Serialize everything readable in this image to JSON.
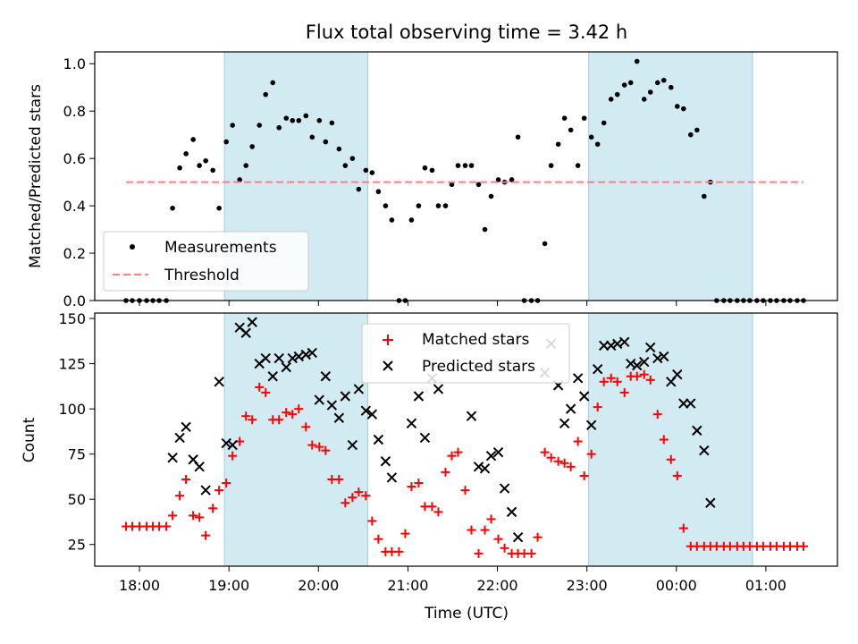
{
  "chart_data": [
    {
      "type": "scatter",
      "title": "Flux total observing time = 3.42 h",
      "xlabel": "",
      "ylabel": "Matched/Predicted stars",
      "xlim": [
        -0.5,
        7.8
      ],
      "ylim": [
        0.0,
        1.05
      ],
      "x_ticks": [
        0,
        1,
        2,
        3,
        4,
        5,
        6,
        7
      ],
      "y_ticks": [
        {
          "v": 0.0,
          "label": "0.0"
        },
        {
          "v": 0.2,
          "label": "0.2"
        },
        {
          "v": 0.4,
          "label": "0.4"
        },
        {
          "v": 0.6,
          "label": "0.6"
        },
        {
          "v": 0.8,
          "label": "0.8"
        },
        {
          "v": 1.0,
          "label": "1.0"
        }
      ],
      "shaded_spans": [
        [
          0.95,
          2.55
        ],
        [
          5.02,
          6.85
        ]
      ],
      "legend_position": "lower-left",
      "series": [
        {
          "name": "Measurements",
          "style": "dot",
          "color": "#000000",
          "x": [
            -0.15,
            -0.08,
            0.0,
            0.08,
            0.15,
            0.22,
            0.3,
            0.37,
            0.45,
            0.52,
            0.6,
            0.67,
            0.74,
            0.82,
            0.89,
            0.97,
            1.04,
            1.12,
            1.19,
            1.26,
            1.34,
            1.41,
            1.49,
            1.56,
            1.64,
            1.71,
            1.78,
            1.86,
            1.93,
            2.01,
            2.08,
            2.15,
            2.23,
            2.3,
            2.38,
            2.45,
            2.53,
            2.6,
            2.67,
            2.75,
            2.82,
            2.9,
            2.97,
            3.04,
            3.12,
            3.19,
            3.27,
            3.34,
            3.42,
            3.49,
            3.56,
            3.64,
            3.71,
            3.79,
            3.86,
            3.93,
            4.01,
            4.08,
            4.16,
            4.23,
            4.3,
            4.38,
            4.45,
            4.53,
            4.6,
            4.68,
            4.75,
            4.82,
            4.9,
            4.97,
            5.05,
            5.12,
            5.19,
            5.27,
            5.34,
            5.42,
            5.49,
            5.56,
            5.64,
            5.71,
            5.79,
            5.86,
            5.94,
            6.01,
            6.08,
            6.16,
            6.23,
            6.31,
            6.38,
            6.45,
            6.53,
            6.6,
            6.68,
            6.75,
            6.82,
            6.9,
            6.97,
            7.05,
            7.12,
            7.2,
            7.27,
            7.35,
            7.42
          ],
          "y": [
            0,
            0,
            0,
            0,
            0,
            0,
            0,
            0.39,
            0.56,
            0.62,
            0.68,
            0.57,
            0.59,
            0.55,
            0.39,
            0.67,
            0.74,
            0.51,
            0.57,
            0.65,
            0.74,
            0.87,
            0.92,
            0.73,
            0.77,
            0.76,
            0.76,
            0.78,
            0.69,
            0.76,
            0.67,
            0.75,
            0.64,
            0.57,
            0.6,
            0.47,
            0.55,
            0.54,
            0.46,
            0.4,
            0.34,
            0,
            0,
            0.34,
            0.4,
            0.56,
            0.55,
            0.4,
            0.4,
            0.49,
            0.57,
            0.57,
            0.57,
            0.49,
            0.3,
            0.44,
            0.51,
            0.5,
            0.51,
            0.69,
            0,
            0,
            0,
            0.24,
            0.57,
            0.66,
            0.77,
            0.72,
            0.57,
            0.77,
            0.69,
            0.66,
            0.75,
            0.85,
            0.87,
            0.91,
            0.92,
            1.01,
            0.85,
            0.88,
            0.92,
            0.93,
            0.9,
            0.82,
            0.81,
            0.7,
            0.72,
            0.44,
            0.5,
            0,
            0,
            0,
            0,
            0,
            0,
            0,
            0,
            0,
            0,
            0,
            0,
            0,
            0
          ]
        },
        {
          "name": "Threshold",
          "style": "dashed-line",
          "color": "#ff7f7f",
          "x": [
            -0.15,
            7.42
          ],
          "y": [
            0.5,
            0.5
          ]
        }
      ]
    },
    {
      "type": "scatter",
      "title": "",
      "xlabel": "Time (UTC)",
      "ylabel": "Count",
      "xlim": [
        -0.5,
        7.8
      ],
      "ylim": [
        13,
        153
      ],
      "x_ticks": [
        {
          "v": 0,
          "label": "18:00"
        },
        {
          "v": 1,
          "label": "19:00"
        },
        {
          "v": 2,
          "label": "20:00"
        },
        {
          "v": 3,
          "label": "21:00"
        },
        {
          "v": 4,
          "label": "22:00"
        },
        {
          "v": 5,
          "label": "23:00"
        },
        {
          "v": 6,
          "label": "00:00"
        },
        {
          "v": 7,
          "label": "01:00"
        }
      ],
      "y_ticks": [
        {
          "v": 25,
          "label": "25"
        },
        {
          "v": 50,
          "label": "50"
        },
        {
          "v": 75,
          "label": "75"
        },
        {
          "v": 100,
          "label": "100"
        },
        {
          "v": 125,
          "label": "125"
        },
        {
          "v": 150,
          "label": "150"
        }
      ],
      "shaded_spans": [
        [
          0.95,
          2.55
        ],
        [
          5.02,
          6.85
        ]
      ],
      "legend_position": "top-center",
      "series": [
        {
          "name": "Matched stars",
          "style": "plus",
          "color": "#ff0000",
          "x": [
            -0.15,
            -0.08,
            0.0,
            0.08,
            0.15,
            0.22,
            0.3,
            0.37,
            0.45,
            0.52,
            0.6,
            0.67,
            0.74,
            0.82,
            0.89,
            0.97,
            1.04,
            1.12,
            1.19,
            1.26,
            1.34,
            1.41,
            1.49,
            1.56,
            1.64,
            1.71,
            1.78,
            1.86,
            1.93,
            2.01,
            2.08,
            2.15,
            2.23,
            2.3,
            2.38,
            2.45,
            2.53,
            2.6,
            2.67,
            2.75,
            2.82,
            2.9,
            2.97,
            3.04,
            3.12,
            3.19,
            3.27,
            3.34,
            3.42,
            3.49,
            3.56,
            3.64,
            3.71,
            3.79,
            3.86,
            3.93,
            4.01,
            4.08,
            4.16,
            4.23,
            4.3,
            4.38,
            4.45,
            4.53,
            4.6,
            4.68,
            4.75,
            4.82,
            4.9,
            4.97,
            5.05,
            5.12,
            5.19,
            5.27,
            5.34,
            5.42,
            5.49,
            5.56,
            5.64,
            5.71,
            5.79,
            5.86,
            5.94,
            6.01,
            6.08,
            6.16,
            6.23,
            6.31,
            6.38,
            6.45,
            6.53,
            6.6,
            6.68,
            6.75,
            6.82,
            6.9,
            6.97,
            7.05,
            7.12,
            7.2,
            7.27,
            7.35,
            7.42
          ],
          "y": [
            35,
            35,
            35,
            35,
            35,
            35,
            35,
            41,
            52,
            61,
            41,
            40,
            30,
            45,
            55,
            59,
            74,
            82,
            96,
            94,
            112,
            109,
            94,
            94,
            98,
            97,
            100,
            90,
            80,
            79,
            77,
            61,
            61,
            48,
            51,
            54,
            52,
            38,
            28,
            21,
            21,
            21,
            31,
            57,
            59,
            46,
            46,
            43,
            65,
            74,
            76,
            55,
            33,
            20,
            33,
            39,
            28,
            23,
            20,
            20,
            20,
            20,
            29,
            76,
            73,
            71,
            70,
            68,
            82,
            63,
            75,
            101,
            115,
            117,
            115,
            109,
            118,
            118,
            119,
            116,
            97,
            83,
            72,
            63,
            34,
            24,
            24,
            24,
            24,
            24,
            24,
            24,
            24,
            24,
            24,
            24,
            24,
            24,
            24,
            24,
            24,
            24,
            24
          ]
        },
        {
          "name": "Predicted stars",
          "style": "x",
          "color": "#000000",
          "x": [
            0.37,
            0.45,
            0.52,
            0.6,
            0.67,
            0.74,
            0.89,
            0.97,
            1.04,
            1.12,
            1.19,
            1.26,
            1.34,
            1.41,
            1.49,
            1.56,
            1.64,
            1.71,
            1.78,
            1.86,
            1.93,
            2.01,
            2.08,
            2.15,
            2.23,
            2.3,
            2.38,
            2.45,
            2.53,
            2.6,
            2.67,
            2.75,
            2.82,
            2.9,
            2.97,
            3.04,
            3.12,
            3.19,
            3.27,
            3.34,
            3.42,
            3.49,
            3.56,
            3.64,
            3.71,
            3.79,
            3.86,
            3.93,
            4.01,
            4.08,
            4.16,
            4.23,
            4.3,
            4.38,
            4.45,
            4.53,
            4.6,
            4.68,
            4.75,
            4.82,
            4.9,
            4.97,
            5.05,
            5.12,
            5.19,
            5.27,
            5.34,
            5.42,
            5.49,
            5.56,
            5.64,
            5.71,
            5.79,
            5.86,
            5.94,
            6.01,
            6.08,
            6.16,
            6.23,
            6.31,
            6.38,
            6.45,
            6.53,
            6.6,
            6.68,
            6.75,
            6.82,
            6.9,
            6.97,
            7.05
          ],
          "y": [
            73,
            84,
            90,
            72,
            68,
            55,
            115,
            81,
            80,
            145,
            142,
            148,
            125,
            128,
            118,
            128,
            123,
            128,
            129,
            130,
            131,
            105,
            118,
            102,
            95,
            107,
            80,
            111,
            99,
            97,
            83,
            71,
            62,
            null,
            null,
            92,
            107,
            84,
            117,
            111,
            null,
            null,
            null,
            null,
            96,
            68,
            67,
            74,
            76,
            56,
            43,
            29,
            null,
            null,
            null,
            120,
            136,
            113,
            92,
            100,
            117,
            107,
            91,
            122,
            135,
            135,
            136,
            137,
            125,
            124,
            126,
            134,
            128,
            129,
            115,
            119,
            103,
            103,
            88,
            77,
            48,
            null,
            null,
            null,
            null,
            null,
            null,
            null,
            null,
            null
          ]
        }
      ]
    }
  ]
}
